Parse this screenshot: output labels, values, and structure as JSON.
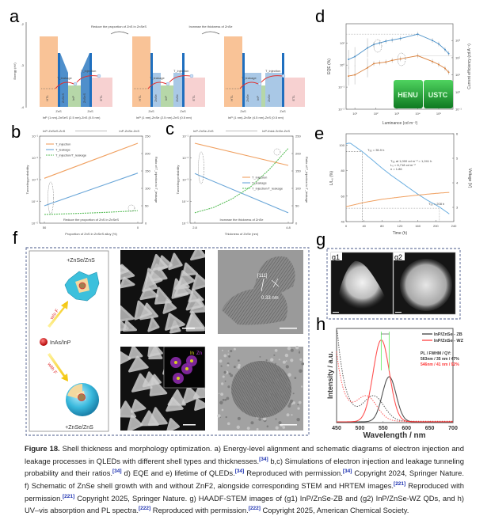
{
  "panel_labels": {
    "a": "a",
    "b": "b",
    "c": "c",
    "d": "d",
    "e": "e",
    "f": "f",
    "g": "g",
    "h": "h",
    "g1": "g1",
    "g2": "g2"
  },
  "panel_a": {
    "y_axis_label": "Energy (eV)",
    "y_ticks": [
      "-2",
      "-3",
      "-4"
    ],
    "transition_1": "Reduce the proportion of ZnS in ZnSeS",
    "transition_2": "Increase the thickness of ZnSe",
    "diagrams": [
      {
        "layers": [
          "HTL",
          "ZnSeS",
          "InP",
          "ZnSeS",
          "ETL"
        ],
        "barrier": "ZnS",
        "caption": "InP (1 nm)-ZnSeS (2.5 nm)-ZnS (0.5 nm)"
      },
      {
        "layers": [
          "HTL",
          "ZnSe",
          "InP",
          "ZnSe",
          "ETL"
        ],
        "barrier": "ZnS",
        "caption": "InP (1 nm)-ZnSe (2.5 nm)-ZnS (0.5 nm)"
      },
      {
        "layers": [
          "HTL",
          "ZnSe",
          "InP",
          "ZnSe",
          "ETL"
        ],
        "barrier": "ZnS",
        "caption": "InP (1 nm)-ZnSe (4.5 nm)-ZnS (0.5 nm)"
      }
    ],
    "leakage_label": "T_leakage",
    "injection_label": "T_injection",
    "colors": {
      "htl": "#f9c397",
      "shell": "#a9c8e6",
      "shell_dark": "#4f8fcb",
      "zns": "#1f6fbf",
      "core": "#b6d7a8",
      "etl": "#f7d1d1",
      "arrow": "#e0302f"
    }
  },
  "chart_data": [
    {
      "id": "b",
      "type": "line",
      "top_label_left": "InP-ZnSeS-ZnS",
      "top_label_right": "InP-ZnSe-ZnS",
      "xlabel": "Proportion of ZnS in ZnSeS alloy (%)",
      "ylabel": "Tunneling probability",
      "ylabel_right": "Ratio of T_injection to T_leakage",
      "annotation": "Reduce the proportion of ZnS in ZnSeS",
      "xlim": [
        50,
        0
      ],
      "x_ticks": [
        "50",
        "0"
      ],
      "ylim": [
        1e-05,
        0.1
      ],
      "yscale": "log",
      "y_ticks": [
        "10⁻⁵",
        "10⁻⁴",
        "10⁻³",
        "10⁻²",
        "10⁻¹"
      ],
      "ylim_right": [
        0,
        250
      ],
      "y_ticks_right": [
        "0",
        "50",
        "100",
        "150",
        "200",
        "250"
      ],
      "series": [
        {
          "name": "T_injection",
          "axis": "left",
          "color": "#f0a060",
          "x": [
            50,
            0
          ],
          "y": [
            0.00115,
            0.047
          ]
        },
        {
          "name": "T_leakage",
          "axis": "left",
          "color": "#6aa6d8",
          "x": [
            50,
            0
          ],
          "y": [
            6.3e-05,
            0.002
          ]
        },
        {
          "name": "T_injection/T_leakage",
          "axis": "right",
          "color": "#5cbf5c",
          "dashed": true,
          "x": [
            50,
            40,
            30,
            20,
            10,
            0
          ],
          "y": [
            25,
            26.5,
            28.5,
            30.5,
            33,
            36
          ]
        }
      ],
      "legend": "top-left"
    },
    {
      "id": "c",
      "type": "line",
      "top_label_left": "InP-ZnSe-ZnS",
      "top_label_right": "InP-thick ZnSe-ZnS",
      "xlabel": "Thickness of ZnSe (nm)",
      "ylabel": "Tunneling probability",
      "ylabel_right": "Ratio of T_injection to T_leakage",
      "annotation": "Increase the thickness of ZnSe",
      "xlim": [
        2.8,
        4.8
      ],
      "x_ticks": [
        "2.8",
        "4.8"
      ],
      "ylim": [
        1e-05,
        0.1
      ],
      "yscale": "log",
      "y_ticks": [
        "10⁻⁵",
        "10⁻⁴",
        "10⁻³",
        "10⁻²",
        "10⁻¹"
      ],
      "ylim_right": [
        0,
        250
      ],
      "y_ticks_right": [
        "0",
        "50",
        "100",
        "150",
        "200",
        "250"
      ],
      "series": [
        {
          "name": "T_injection",
          "axis": "left",
          "color": "#f0a060",
          "x": [
            2.8,
            4.8
          ],
          "y": [
            0.047,
            0.0045
          ]
        },
        {
          "name": "T_leakage",
          "axis": "left",
          "color": "#6aa6d8",
          "x": [
            2.8,
            4.8
          ],
          "y": [
            0.0019,
            3e-05
          ]
        },
        {
          "name": "T_injection/T_leakage",
          "axis": "right",
          "color": "#5cbf5c",
          "dashed": true,
          "x": [
            2.8,
            3.2,
            3.6,
            4.0,
            4.4,
            4.8
          ],
          "y": [
            30,
            45,
            70,
            105,
            155,
            215
          ]
        }
      ],
      "legend": "bottom-right"
    },
    {
      "id": "d",
      "type": "line",
      "xlabel": "Luminance (cd m⁻²)",
      "ylabel": "EQE (%)",
      "ylabel_right": "Current efficiency (cd A⁻¹)",
      "xscale": "log",
      "xlim": [
        3.8,
        480000
      ],
      "x_ticks": [
        "10¹",
        "10²",
        "10³",
        "10⁴",
        "10⁵"
      ],
      "yscale": "log",
      "ylim": [
        0.01,
        74
      ],
      "y_ticks": [
        "10⁻²",
        "10⁻¹",
        "10⁰",
        "10¹"
      ],
      "ylim_right": [
        0.1,
        9500
      ],
      "y_ticks_right": [
        "10⁻¹",
        "10⁰",
        "10¹",
        "10²",
        "10³"
      ],
      "series": [
        {
          "name": "EQE",
          "axis": "left",
          "color": "#4a90c8",
          "x": [
            5,
            10,
            40,
            80,
            150,
            300,
            600,
            1500,
            10000,
            50000,
            100000,
            200000,
            300000
          ],
          "y": [
            1.8,
            2.4,
            6,
            8.5,
            10,
            12,
            13.5,
            16,
            25,
            13,
            9,
            5,
            3.3
          ]
        },
        {
          "name": "Current efficiency",
          "axis": "right",
          "color": "#d9823e",
          "x": [
            5,
            10,
            40,
            80,
            150,
            300,
            600,
            1500,
            10000,
            50000,
            100000,
            200000,
            300000
          ],
          "y": [
            8.5,
            10,
            26,
            45,
            50,
            56,
            70,
            85,
            130,
            60,
            40,
            24,
            14
          ]
        }
      ],
      "inset_text": [
        "HENU",
        "USTC"
      ]
    },
    {
      "id": "e",
      "type": "line",
      "xlabel": "Time (h)",
      "ylabel": "L/L₀ (%)",
      "ylabel_right": "Voltage (V)",
      "xlim": [
        0,
        240
      ],
      "x_ticks": [
        "0",
        "40",
        "80",
        "120",
        "160",
        "200",
        "240"
      ],
      "ylim": [
        40,
        109
      ],
      "y_ticks": [
        "40",
        "60",
        "80",
        "100"
      ],
      "ylim_right": [
        2.42,
        6
      ],
      "y_ticks_right": [
        "3",
        "4",
        "5",
        "6"
      ],
      "series": [
        {
          "name": "L/L0",
          "axis": "left",
          "color": "#6aaee0",
          "x": [
            0,
            5,
            10,
            20,
            36,
            60,
            80,
            100,
            120,
            140,
            160,
            180,
            208,
            230
          ],
          "y": [
            101,
            101.6,
            101.5,
            99,
            95,
            88,
            82,
            76.5,
            71.5,
            66.5,
            61.5,
            57,
            51.5,
            46
          ]
        },
        {
          "name": "Voltage",
          "axis": "right",
          "color": "#f0a060",
          "x": [
            0,
            40,
            80,
            120,
            160,
            200,
            230
          ],
          "y": [
            3.03,
            3.2,
            3.33,
            3.42,
            3.5,
            3.57,
            3.61
          ]
        }
      ],
      "annotations": [
        "T₉₅ = 35.9 h",
        "T₉₅ at 1,000 cd m⁻² = 1,241 h",
        "L₀ = 6,718 cd m⁻²",
        "n = 1.86",
        "T₅₀ = 208 h"
      ]
    },
    {
      "id": "h",
      "type": "line",
      "xlabel": "Wavelength / nm",
      "ylabel": "Intensity / a.u.",
      "xlim": [
        450,
        700
      ],
      "x_ticks": [
        "450",
        "500",
        "550",
        "600",
        "650",
        "700"
      ],
      "ylim": [
        0,
        1.15
      ],
      "legend_title": "PL / FWHM / QY:",
      "series": [
        {
          "name": "InP/ZnSe - ZB",
          "color": "#333333",
          "pl_peak_nm": 563,
          "fwhm_nm": 35,
          "qy": "47%",
          "pl_height": 0.55,
          "abs_onset": 1.2,
          "abs_bump_nm": 530,
          "abs_bump": 0.3,
          "stats": "563nm / 35 nm / 47%"
        },
        {
          "name": "InP/ZnSe - WZ",
          "color": "#ff3333",
          "pl_peak_nm": 546,
          "fwhm_nm": 41,
          "qy": "92%",
          "pl_height": 1.0,
          "abs_onset": 0.85,
          "abs_bump_nm": 515,
          "abs_bump": 0.29,
          "stats": "546nm / 41 nm / 92%"
        }
      ],
      "legend": "top-right"
    }
  ],
  "panel_f": {
    "top_label": "+ZnSe/ZnS",
    "bottom_label": "+ZnSe/ZnS",
    "core_label": "InAs/InP",
    "arrow_up_label": "w/o F",
    "arrow_down_label": "with F",
    "hrtem_plane": "[111]",
    "hrtem_spacing": "0.33 nm",
    "eds_labels": [
      "In",
      "Zn"
    ]
  },
  "caption": [
    {
      "t": "Figure 18.",
      "bold": true
    },
    {
      "t": "  Shell thickness and morphology optimization. a) Energy-level alignment and schematic diagrams of electron injection and leakage processes in QLEDs with different shell types and thicknesses."
    },
    {
      "t": "[34]",
      "sup": true
    },
    {
      "t": " b,c) Simulations of electron injection and leakage tunneling probability and their ratios."
    },
    {
      "t": "[34]",
      "sup": true
    },
    {
      "t": " d) EQE and e) lifetime of QLEDs."
    },
    {
      "t": "[34]",
      "sup": true
    },
    {
      "t": " Reproduced with permission."
    },
    {
      "t": "[34]",
      "sup": true
    },
    {
      "t": " Copyright 2024, Springer Nature. f) Schematic of ZnSe shell growth with and without ZnF2, alongside corresponding STEM and HRTEM images."
    },
    {
      "t": "[221]",
      "sup": true
    },
    {
      "t": " Reproduced with permission."
    },
    {
      "t": "[221]",
      "sup": true
    },
    {
      "t": " Copyright 2025, Springer Nature. g) HAADF-STEM images of (g1) InP/ZnSe-ZB and (g2) InP/ZnSe-WZ QDs, and h) UV–vis absorption and PL spectra."
    },
    {
      "t": "[222]",
      "sup": true
    },
    {
      "t": " Reproduced with permission."
    },
    {
      "t": "[222]",
      "sup": true
    },
    {
      "t": " Copyright 2025, American Chemical Society."
    }
  ]
}
